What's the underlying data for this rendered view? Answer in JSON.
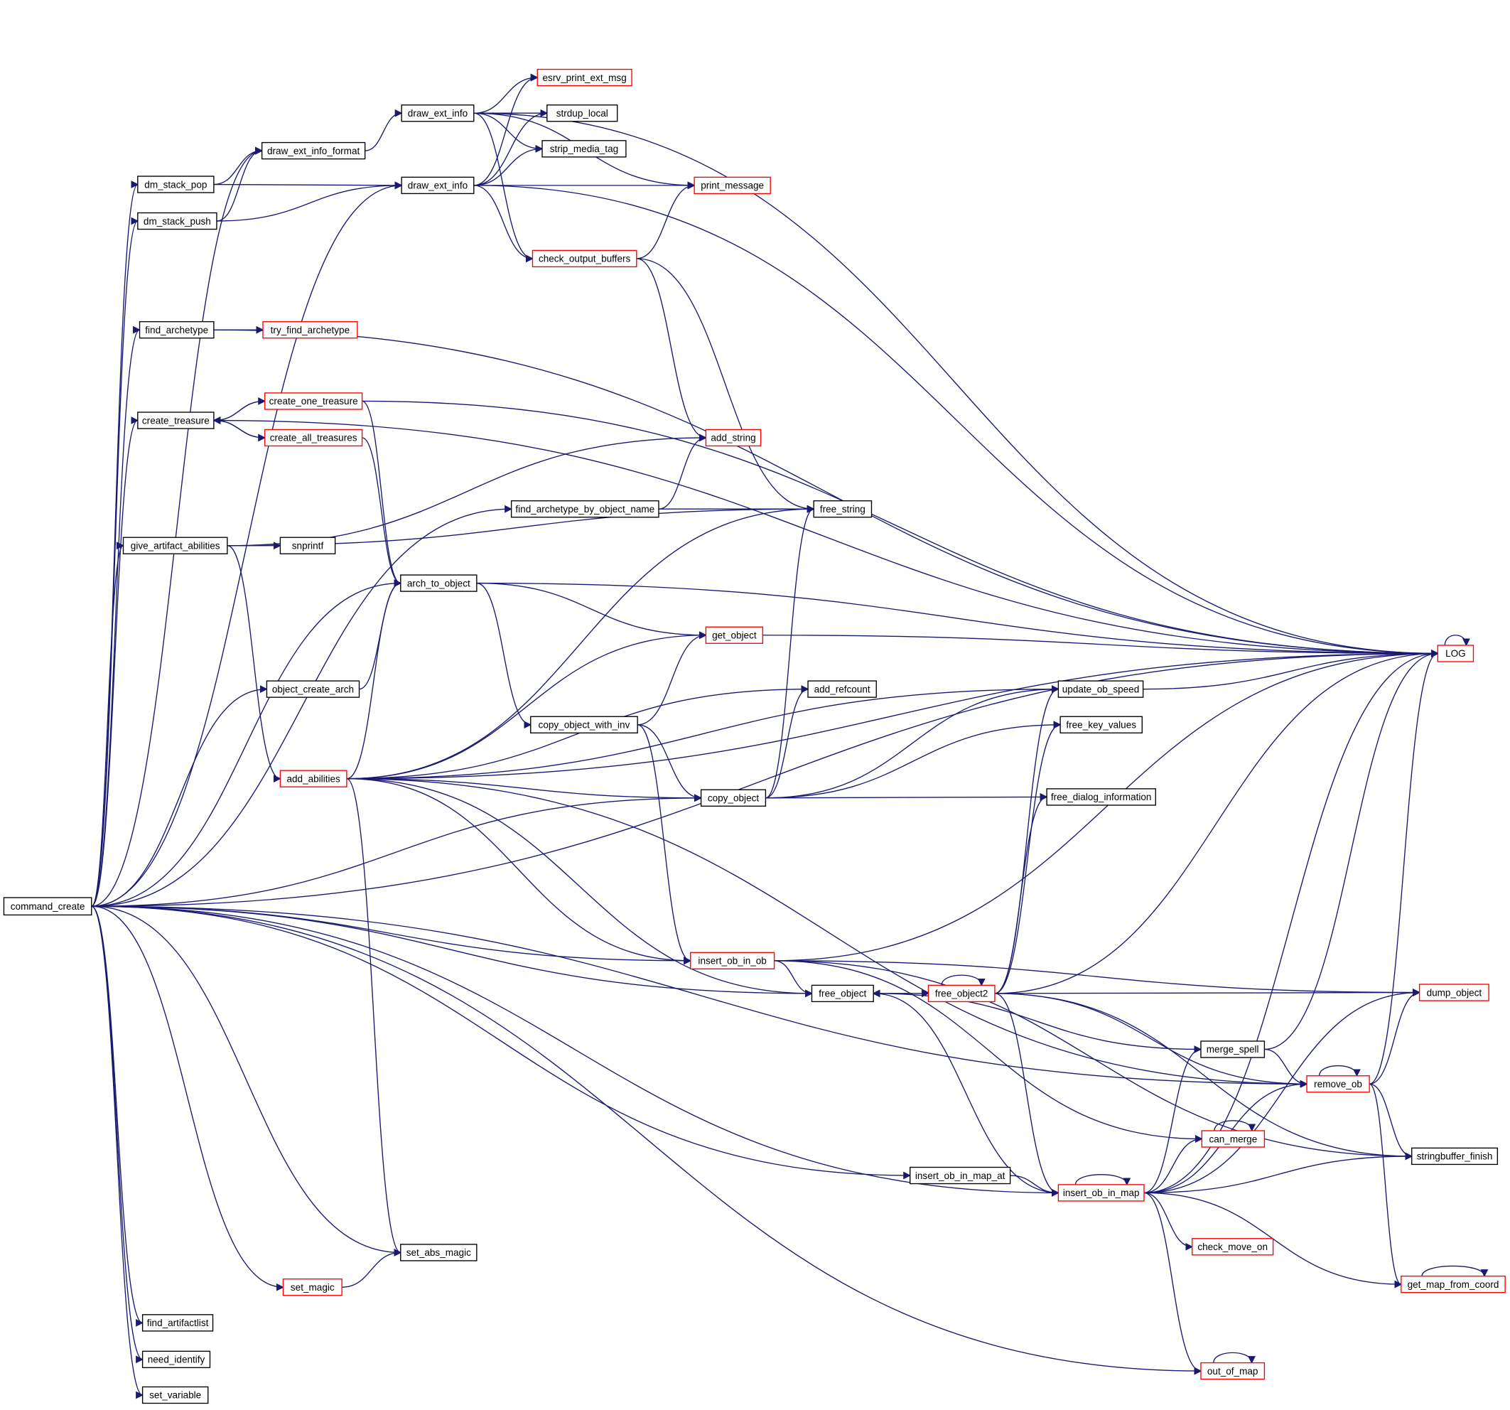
{
  "colors": {
    "edge": "#191970",
    "node_border": "#000000",
    "truncated_border": "#ff0000",
    "root_fill": "#bfbfbf",
    "node_fill": "#ffffff"
  },
  "nodes": [
    {
      "id": "command_create",
      "label": "command_create",
      "style": "root"
    },
    {
      "id": "draw_ext_info_format",
      "label": "draw_ext_info_format",
      "style": "normal"
    },
    {
      "id": "dm_stack_pop",
      "label": "dm_stack_pop",
      "style": "normal"
    },
    {
      "id": "dm_stack_push",
      "label": "dm_stack_push",
      "style": "normal"
    },
    {
      "id": "draw_ext_info_a",
      "label": "draw_ext_info",
      "style": "normal"
    },
    {
      "id": "draw_ext_info_b",
      "label": "draw_ext_info",
      "style": "normal"
    },
    {
      "id": "esrv_print_ext_msg",
      "label": "esrv_print_ext_msg",
      "style": "truncated"
    },
    {
      "id": "strdup_local",
      "label": "strdup_local",
      "style": "normal"
    },
    {
      "id": "strip_media_tag",
      "label": "strip_media_tag",
      "style": "normal"
    },
    {
      "id": "print_message",
      "label": "print_message",
      "style": "truncated"
    },
    {
      "id": "check_output_buffers",
      "label": "check_output_buffers",
      "style": "truncated"
    },
    {
      "id": "find_archetype",
      "label": "find_archetype",
      "style": "normal"
    },
    {
      "id": "try_find_archetype",
      "label": "try_find_archetype",
      "style": "truncated"
    },
    {
      "id": "create_treasure",
      "label": "create_treasure",
      "style": "normal"
    },
    {
      "id": "create_one_treasure",
      "label": "create_one_treasure",
      "style": "truncated"
    },
    {
      "id": "create_all_treasures",
      "label": "create_all_treasures",
      "style": "truncated"
    },
    {
      "id": "add_string",
      "label": "add_string",
      "style": "truncated"
    },
    {
      "id": "find_archetype_by_object_name",
      "label": "find_archetype_by_object_name",
      "style": "normal"
    },
    {
      "id": "free_string",
      "label": "free_string",
      "style": "normal"
    },
    {
      "id": "give_artifact_abilities",
      "label": "give_artifact_abilities",
      "style": "normal"
    },
    {
      "id": "snprintf",
      "label": "snprintf",
      "style": "normal"
    },
    {
      "id": "arch_to_object",
      "label": "arch_to_object",
      "style": "normal"
    },
    {
      "id": "get_object",
      "label": "get_object",
      "style": "truncated"
    },
    {
      "id": "LOG",
      "label": "LOG",
      "style": "truncated"
    },
    {
      "id": "object_create_arch",
      "label": "object_create_arch",
      "style": "normal"
    },
    {
      "id": "add_refcount",
      "label": "add_refcount",
      "style": "normal"
    },
    {
      "id": "update_ob_speed",
      "label": "update_ob_speed",
      "style": "normal"
    },
    {
      "id": "copy_object_with_inv",
      "label": "copy_object_with_inv",
      "style": "normal"
    },
    {
      "id": "free_key_values",
      "label": "free_key_values",
      "style": "normal"
    },
    {
      "id": "add_abilities",
      "label": "add_abilities",
      "style": "truncated"
    },
    {
      "id": "copy_object",
      "label": "copy_object",
      "style": "normal"
    },
    {
      "id": "free_dialog_information",
      "label": "free_dialog_information",
      "style": "normal"
    },
    {
      "id": "insert_ob_in_ob",
      "label": "insert_ob_in_ob",
      "style": "truncated"
    },
    {
      "id": "free_object",
      "label": "free_object",
      "style": "normal"
    },
    {
      "id": "free_object2",
      "label": "free_object2",
      "style": "truncated"
    },
    {
      "id": "dump_object",
      "label": "dump_object",
      "style": "truncated"
    },
    {
      "id": "merge_spell",
      "label": "merge_spell",
      "style": "normal"
    },
    {
      "id": "remove_ob",
      "label": "remove_ob",
      "style": "truncated"
    },
    {
      "id": "can_merge",
      "label": "can_merge",
      "style": "truncated"
    },
    {
      "id": "stringbuffer_finish",
      "label": "stringbuffer_finish",
      "style": "normal"
    },
    {
      "id": "insert_ob_in_map_at",
      "label": "insert_ob_in_map_at",
      "style": "normal"
    },
    {
      "id": "insert_ob_in_map",
      "label": "insert_ob_in_map",
      "style": "truncated"
    },
    {
      "id": "check_move_on",
      "label": "check_move_on",
      "style": "truncated"
    },
    {
      "id": "set_abs_magic",
      "label": "set_abs_magic",
      "style": "normal"
    },
    {
      "id": "set_magic",
      "label": "set_magic",
      "style": "truncated"
    },
    {
      "id": "get_map_from_coord",
      "label": "get_map_from_coord",
      "style": "truncated"
    },
    {
      "id": "find_artifactlist",
      "label": "find_artifactlist",
      "style": "normal"
    },
    {
      "id": "need_identify",
      "label": "need_identify",
      "style": "normal"
    },
    {
      "id": "out_of_map",
      "label": "out_of_map",
      "style": "truncated"
    },
    {
      "id": "set_variable",
      "label": "set_variable",
      "style": "normal"
    }
  ],
  "edges": [
    [
      "command_create",
      "dm_stack_pop"
    ],
    [
      "command_create",
      "dm_stack_push"
    ],
    [
      "command_create",
      "draw_ext_info_format"
    ],
    [
      "command_create",
      "draw_ext_info_b"
    ],
    [
      "command_create",
      "find_archetype"
    ],
    [
      "command_create",
      "create_treasure"
    ],
    [
      "command_create",
      "give_artifact_abilities"
    ],
    [
      "command_create",
      "find_archetype_by_object_name"
    ],
    [
      "command_create",
      "arch_to_object"
    ],
    [
      "command_create",
      "object_create_arch"
    ],
    [
      "command_create",
      "copy_object"
    ],
    [
      "command_create",
      "LOG"
    ],
    [
      "command_create",
      "insert_ob_in_ob"
    ],
    [
      "command_create",
      "free_object"
    ],
    [
      "command_create",
      "remove_ob"
    ],
    [
      "command_create",
      "insert_ob_in_map_at"
    ],
    [
      "command_create",
      "insert_ob_in_map"
    ],
    [
      "command_create",
      "set_abs_magic"
    ],
    [
      "command_create",
      "set_magic"
    ],
    [
      "command_create",
      "find_artifactlist"
    ],
    [
      "command_create",
      "need_identify"
    ],
    [
      "command_create",
      "set_variable"
    ],
    [
      "command_create",
      "out_of_map"
    ],
    [
      "draw_ext_info_format",
      "draw_ext_info_a"
    ],
    [
      "dm_stack_pop",
      "draw_ext_info_format"
    ],
    [
      "dm_stack_pop",
      "draw_ext_info_b"
    ],
    [
      "dm_stack_push",
      "draw_ext_info_format"
    ],
    [
      "dm_stack_push",
      "draw_ext_info_b"
    ],
    [
      "draw_ext_info_a",
      "esrv_print_ext_msg"
    ],
    [
      "draw_ext_info_a",
      "strdup_local"
    ],
    [
      "draw_ext_info_a",
      "strip_media_tag"
    ],
    [
      "draw_ext_info_a",
      "check_output_buffers"
    ],
    [
      "draw_ext_info_a",
      "LOG"
    ],
    [
      "draw_ext_info_a",
      "print_message"
    ],
    [
      "draw_ext_info_b",
      "esrv_print_ext_msg"
    ],
    [
      "draw_ext_info_b",
      "strdup_local"
    ],
    [
      "draw_ext_info_b",
      "strip_media_tag"
    ],
    [
      "draw_ext_info_b",
      "print_message"
    ],
    [
      "draw_ext_info_b",
      "check_output_buffers"
    ],
    [
      "draw_ext_info_b",
      "LOG"
    ],
    [
      "check_output_buffers",
      "print_message"
    ],
    [
      "check_output_buffers",
      "add_string"
    ],
    [
      "check_output_buffers",
      "free_string"
    ],
    [
      "find_archetype",
      "try_find_archetype"
    ],
    [
      "find_archetype",
      "LOG"
    ],
    [
      "create_treasure",
      "create_one_treasure"
    ],
    [
      "create_treasure",
      "create_all_treasures"
    ],
    [
      "create_treasure",
      "LOG"
    ],
    [
      "create_one_treasure",
      "create_treasure"
    ],
    [
      "create_one_treasure",
      "arch_to_object"
    ],
    [
      "create_one_treasure",
      "LOG"
    ],
    [
      "create_all_treasures",
      "create_treasure"
    ],
    [
      "create_all_treasures",
      "arch_to_object"
    ],
    [
      "find_archetype_by_object_name",
      "add_string"
    ],
    [
      "find_archetype_by_object_name",
      "free_string"
    ],
    [
      "give_artifact_abilities",
      "add_string"
    ],
    [
      "give_artifact_abilities",
      "free_string"
    ],
    [
      "give_artifact_abilities",
      "snprintf"
    ],
    [
      "give_artifact_abilities",
      "add_abilities"
    ],
    [
      "arch_to_object",
      "get_object"
    ],
    [
      "arch_to_object",
      "copy_object_with_inv"
    ],
    [
      "arch_to_object",
      "LOG"
    ],
    [
      "get_object",
      "LOG"
    ],
    [
      "object_create_arch",
      "arch_to_object"
    ],
    [
      "copy_object_with_inv",
      "get_object"
    ],
    [
      "copy_object_with_inv",
      "copy_object"
    ],
    [
      "copy_object_with_inv",
      "insert_ob_in_ob"
    ],
    [
      "add_abilities",
      "arch_to_object"
    ],
    [
      "add_abilities",
      "free_string"
    ],
    [
      "add_abilities",
      "get_object"
    ],
    [
      "add_abilities",
      "LOG"
    ],
    [
      "add_abilities",
      "add_refcount"
    ],
    [
      "add_abilities",
      "copy_object"
    ],
    [
      "add_abilities",
      "update_ob_speed"
    ],
    [
      "add_abilities",
      "insert_ob_in_ob"
    ],
    [
      "add_abilities",
      "free_object"
    ],
    [
      "add_abilities",
      "remove_ob"
    ],
    [
      "add_abilities",
      "set_abs_magic"
    ],
    [
      "copy_object",
      "free_string"
    ],
    [
      "copy_object",
      "add_refcount"
    ],
    [
      "copy_object",
      "update_ob_speed"
    ],
    [
      "copy_object",
      "free_key_values"
    ],
    [
      "copy_object",
      "free_dialog_information"
    ],
    [
      "update_ob_speed",
      "LOG"
    ],
    [
      "insert_ob_in_ob",
      "LOG"
    ],
    [
      "insert_ob_in_ob",
      "dump_object"
    ],
    [
      "insert_ob_in_ob",
      "free_object"
    ],
    [
      "insert_ob_in_ob",
      "can_merge"
    ],
    [
      "insert_ob_in_ob",
      "stringbuffer_finish"
    ],
    [
      "free_object",
      "free_object2"
    ],
    [
      "free_object2",
      "free_object"
    ],
    [
      "free_object2",
      "update_ob_speed"
    ],
    [
      "free_object2",
      "free_key_values"
    ],
    [
      "free_object2",
      "free_dialog_information"
    ],
    [
      "free_object2",
      "dump_object"
    ],
    [
      "free_object2",
      "remove_ob"
    ],
    [
      "free_object2",
      "insert_ob_in_map"
    ],
    [
      "free_object2",
      "stringbuffer_finish"
    ],
    [
      "free_object2",
      "LOG"
    ],
    [
      "free_object2",
      "free_object2"
    ],
    [
      "merge_spell",
      "free_object"
    ],
    [
      "merge_spell",
      "remove_ob"
    ],
    [
      "merge_spell",
      "LOG"
    ],
    [
      "remove_ob",
      "dump_object"
    ],
    [
      "remove_ob",
      "LOG"
    ],
    [
      "remove_ob",
      "stringbuffer_finish"
    ],
    [
      "remove_ob",
      "get_map_from_coord"
    ],
    [
      "remove_ob",
      "remove_ob"
    ],
    [
      "insert_ob_in_map_at",
      "insert_ob_in_map"
    ],
    [
      "insert_ob_in_map",
      "free_object"
    ],
    [
      "insert_ob_in_map",
      "merge_spell"
    ],
    [
      "insert_ob_in_map",
      "can_merge"
    ],
    [
      "insert_ob_in_map",
      "remove_ob"
    ],
    [
      "insert_ob_in_map",
      "dump_object"
    ],
    [
      "insert_ob_in_map",
      "check_move_on"
    ],
    [
      "insert_ob_in_map",
      "stringbuffer_finish"
    ],
    [
      "insert_ob_in_map",
      "get_map_from_coord"
    ],
    [
      "insert_ob_in_map",
      "out_of_map"
    ],
    [
      "insert_ob_in_map",
      "LOG"
    ],
    [
      "insert_ob_in_map",
      "insert_ob_in_map"
    ],
    [
      "set_magic",
      "set_abs_magic"
    ],
    [
      "LOG",
      "LOG"
    ],
    [
      "can_merge",
      "can_merge"
    ],
    [
      "out_of_map",
      "out_of_map"
    ],
    [
      "get_map_from_coord",
      "get_map_from_coord"
    ]
  ]
}
